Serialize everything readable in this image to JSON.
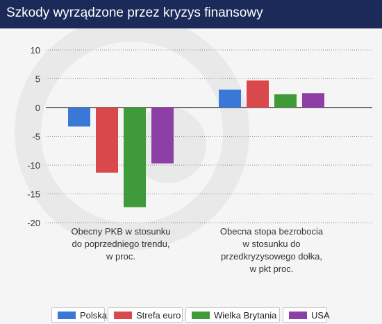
{
  "header": {
    "title": "Szkody wyrządzone przez kryzys finansowy",
    "background": "#1c2a5a"
  },
  "chart_data": {
    "type": "bar",
    "categories": [
      "Obecny PKB w stosunku do poprzedniego trendu, w proc.",
      "Obecna stopa bezrobocia w stosunku do przedkryzysowego dołka, w pkt proc."
    ],
    "category_lines": [
      [
        "Obecny PKB w stosunku",
        "do poprzedniego trendu,",
        "w proc."
      ],
      [
        "Obecna stopa bezrobocia",
        "w stosunku do",
        "przedkryzysowego dołka,",
        "w pkt proc."
      ]
    ],
    "series": [
      {
        "name": "Polska",
        "color": "#3a78d8",
        "values": [
          -3.3,
          3.1
        ]
      },
      {
        "name": "Strefa euro",
        "color": "#d9494b",
        "values": [
          -11.3,
          4.7
        ]
      },
      {
        "name": "Wielka Brytania",
        "color": "#3f9a3a",
        "values": [
          -17.3,
          2.3
        ]
      },
      {
        "name": "USA",
        "color": "#8e3fa6",
        "values": [
          -9.7,
          2.5
        ]
      }
    ],
    "ylim": [
      -20,
      10
    ],
    "yticks": [
      "10",
      "5",
      "0",
      "-5",
      "-10",
      "-15",
      "-20"
    ],
    "grid": true,
    "legend_position": "bottom"
  }
}
